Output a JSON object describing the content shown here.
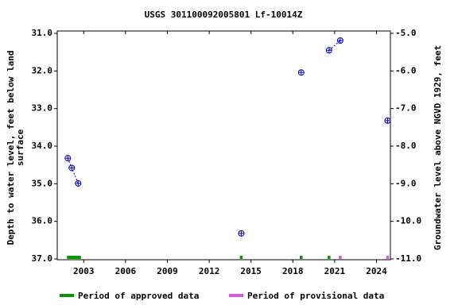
{
  "chart_data": {
    "type": "scatter",
    "title": "USGS 301100092005801 Lf-10014Z",
    "ylabel_lines": [
      "Depth to water level, feet below land",
      "surface"
    ],
    "y2label": "Groundwater level above NGVD 1929, feet",
    "xlim": [
      2001.1,
      2025.0
    ],
    "xticks": [
      2003,
      2006,
      2009,
      2012,
      2015,
      2018,
      2021,
      2024
    ],
    "ylim": [
      37.0,
      31.0
    ],
    "yticks": [
      {
        "value": 31,
        "label": "31.0"
      },
      {
        "value": 32,
        "label": "32.0"
      },
      {
        "value": 33,
        "label": "33.0"
      },
      {
        "value": 34,
        "label": "34.0"
      },
      {
        "value": 35,
        "label": "35.0"
      },
      {
        "value": 36,
        "label": "36.0"
      },
      {
        "value": 37,
        "label": "37.0"
      }
    ],
    "y2lim": [
      -11.0,
      -5.0
    ],
    "y2ticks": [
      {
        "value": -5,
        "label": "-5.0"
      },
      {
        "value": -6,
        "label": "-6.0"
      },
      {
        "value": -7,
        "label": "-7.0"
      },
      {
        "value": -8,
        "label": "-8.0"
      },
      {
        "value": -9,
        "label": "-9.0"
      },
      {
        "value": -10,
        "label": "-10.0"
      },
      {
        "value": -11,
        "label": "-11.0"
      }
    ],
    "series": [
      {
        "color": "#0000cc",
        "x": [
          2001.86,
          2002.14,
          2002.6,
          null,
          2014.3,
          null,
          2018.6,
          null,
          2020.6,
          2021.4,
          null,
          2024.8
        ],
        "values": [
          34.32,
          34.58,
          34.99,
          null,
          36.32,
          null,
          32.04,
          null,
          31.45,
          31.19,
          null,
          33.32
        ]
      }
    ],
    "periods": [
      {
        "name": "Period of approved data",
        "color": "#009900",
        "ranges": [
          [
            2001.8,
            2002.8
          ],
          [
            2014.2,
            2014.4
          ],
          [
            2018.5,
            2018.7
          ],
          [
            2020.5,
            2020.7
          ]
        ]
      },
      {
        "name": "Period of provisional data",
        "color": "#dd55dd",
        "ranges": [
          [
            2021.3,
            2021.5
          ],
          [
            2024.7,
            2024.9
          ]
        ]
      }
    ]
  }
}
